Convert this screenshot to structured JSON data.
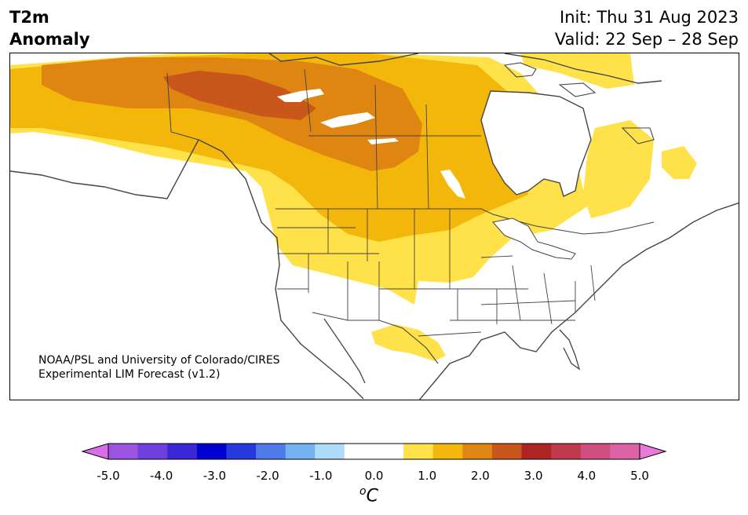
{
  "header": {
    "title_line1": "T2m",
    "title_line2": "Anomaly",
    "init_label": "Init: Thu 31 Aug 2023",
    "valid_label": "Valid: 22 Sep – 28 Sep"
  },
  "map": {
    "credit_line1": "NOAA/PSL and University of Colorado/CIRES",
    "credit_line2": "Experimental LIM Forecast (v1.2)",
    "fill_levels": {
      "0.5-1.0": "#ffe14a",
      "1.0-1.5": "#f3b60b",
      "1.5-2.0": "#de8512",
      "2.0-2.5": "#c9561a"
    }
  },
  "colorbar": {
    "units_base": "C",
    "units_sup": "o",
    "tick_labels": [
      "-5.0",
      "-4.0",
      "-3.0",
      "-2.0",
      "-1.0",
      "0.0",
      "1.0",
      "2.0",
      "3.0",
      "4.0",
      "5.0"
    ],
    "colors": [
      "#d86ee8",
      "#9b53e0",
      "#6c3fde",
      "#3b27d6",
      "#0000d2",
      "#2638de",
      "#4f78e8",
      "#75b2f2",
      "#aedcf8",
      "#ffffff",
      "#ffffff",
      "#ffe14a",
      "#f3b60b",
      "#de8512",
      "#c9561a",
      "#ae2425",
      "#c03a4e",
      "#cf4f7e",
      "#dc64a6",
      "#e87bd8"
    ]
  }
}
